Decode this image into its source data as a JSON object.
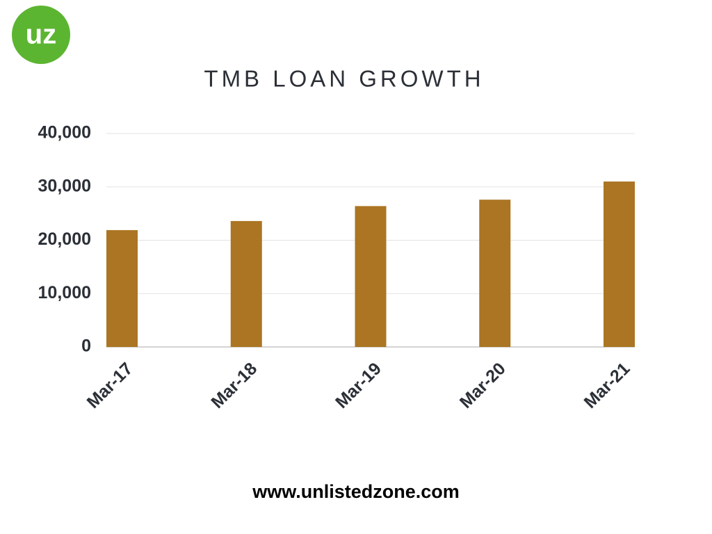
{
  "logo": "uz",
  "footer": "www.unlistedzone.com",
  "chart_data": {
    "type": "bar",
    "title": "TMB LOAN GROWTH",
    "categories": [
      "Mar-17",
      "Mar-18",
      "Mar-19",
      "Mar-20",
      "Mar-21"
    ],
    "values": [
      21900,
      23600,
      26400,
      27600,
      31000
    ],
    "color": "#ab7523",
    "ylim": [
      0,
      40000
    ],
    "yticks": [
      0,
      {
        "value": 10000,
        "label": "10,000"
      },
      {
        "value": 20000,
        "label": "20,000"
      },
      {
        "value": 30000,
        "label": "30,000"
      },
      {
        "value": 40000,
        "label": "40,000"
      }
    ],
    "grid": true
  }
}
